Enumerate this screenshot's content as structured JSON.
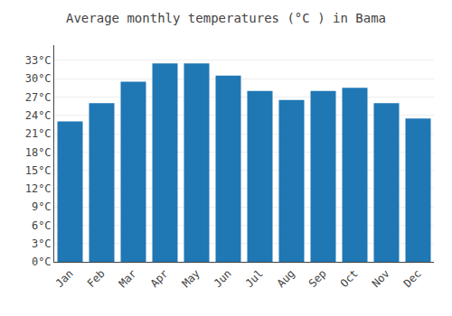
{
  "chart_data": {
    "type": "bar",
    "title": "Average monthly temperatures (°C ) in Bama",
    "categories": [
      "Jan",
      "Feb",
      "Mar",
      "Apr",
      "May",
      "Jun",
      "Jul",
      "Aug",
      "Sep",
      "Oct",
      "Nov",
      "Dec"
    ],
    "values": [
      23.0,
      26.0,
      29.5,
      32.5,
      32.5,
      30.5,
      28.0,
      26.5,
      28.0,
      28.5,
      26.0,
      23.5
    ],
    "ylim": [
      0,
      35.5
    ],
    "yticks": [
      {
        "value": 0,
        "label": "0°C"
      },
      {
        "value": 3,
        "label": "3°C"
      },
      {
        "value": 6,
        "label": "6°C"
      },
      {
        "value": 9,
        "label": "9°C"
      },
      {
        "value": 12,
        "label": "12°C"
      },
      {
        "value": 15,
        "label": "15°C"
      },
      {
        "value": 18,
        "label": "18°C"
      },
      {
        "value": 21,
        "label": "21°C"
      },
      {
        "value": 24,
        "label": "24°C"
      },
      {
        "value": 27,
        "label": "27°C"
      },
      {
        "value": 30,
        "label": "30°C"
      },
      {
        "value": 33,
        "label": "33°C"
      }
    ],
    "grid": true
  }
}
